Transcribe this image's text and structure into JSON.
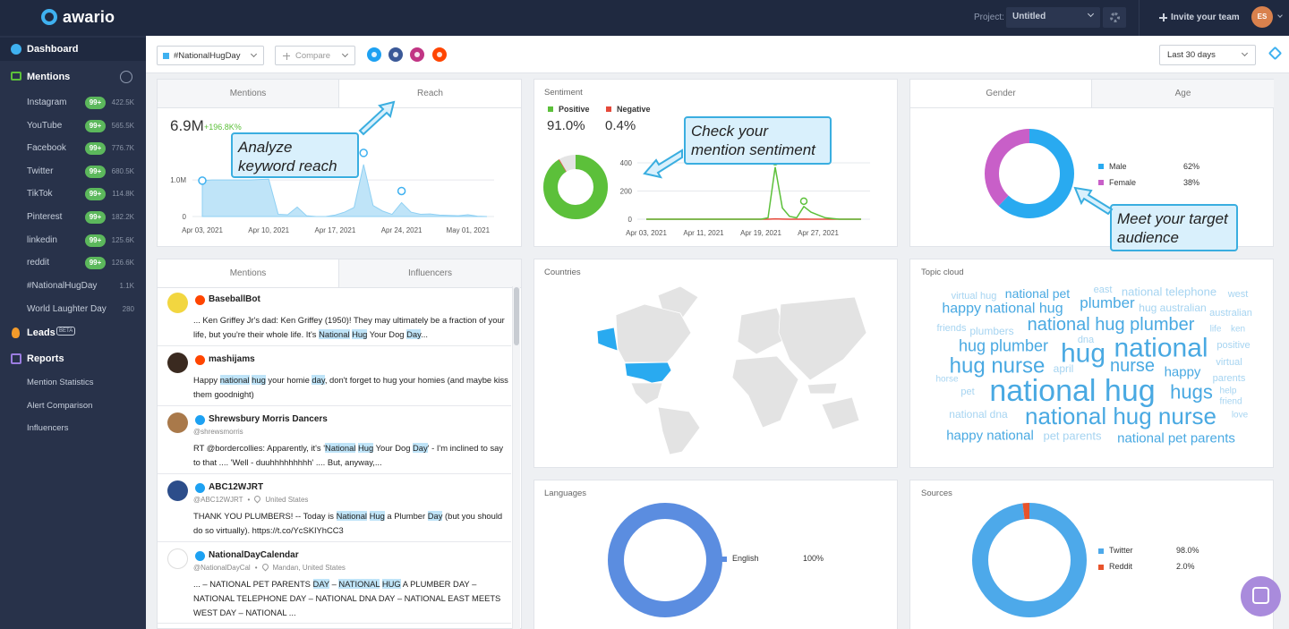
{
  "header": {
    "logo": "awario",
    "project_label": "Project:",
    "project": "Untitled",
    "invite": "Invite your team",
    "avatar": "ES"
  },
  "sidebar": {
    "dashboard": "Dashboard",
    "mentions": "Mentions",
    "sources": [
      {
        "name": "Instagram",
        "badge": "99+",
        "count": "422.5K"
      },
      {
        "name": "YouTube",
        "badge": "99+",
        "count": "565.5K"
      },
      {
        "name": "Facebook",
        "badge": "99+",
        "count": "776.7K"
      },
      {
        "name": "Twitter",
        "badge": "99+",
        "count": "680.5K"
      },
      {
        "name": "TikTok",
        "badge": "99+",
        "count": "114.8K"
      },
      {
        "name": "Pinterest",
        "badge": "99+",
        "count": "182.2K"
      },
      {
        "name": "linkedin",
        "badge": "99+",
        "count": "125.6K"
      },
      {
        "name": "reddit",
        "badge": "99+",
        "count": "126.6K"
      }
    ],
    "alerts": [
      {
        "name": "#NationalHugDay",
        "count": "1.1K"
      },
      {
        "name": "World Laughter Day",
        "count": "280"
      }
    ],
    "leads": "Leads",
    "leads_badge": "BETA",
    "reports": "Reports",
    "report_items": [
      "Mention Statistics",
      "Alert Comparison",
      "Influencers"
    ]
  },
  "toolbar": {
    "alert": "#NationalHugDay",
    "compare": "Compare",
    "period": "Last 30 days"
  },
  "reach": {
    "tabs": [
      "Mentions",
      "Reach"
    ],
    "total": "6.9M",
    "change": "+196.8K%",
    "callout": "Analyze keyword reach",
    "chart_data": {
      "type": "area",
      "color": "#8fd0f3",
      "categories": [
        "Apr 03, 2021",
        null,
        null,
        null,
        null,
        null,
        null,
        "Apr 10, 2021",
        null,
        null,
        null,
        null,
        null,
        null,
        "Apr 17, 2021",
        null,
        null,
        null,
        null,
        null,
        null,
        "Apr 24, 2021",
        null,
        null,
        null,
        null,
        null,
        null,
        "May 01, 2021",
        null,
        null
      ],
      "values": [
        980000,
        1000000,
        1000000,
        1000000,
        1000000,
        1000000,
        1010000,
        1020000,
        60000,
        50000,
        260000,
        20000,
        0,
        0,
        40000,
        120000,
        250000,
        1420000,
        300000,
        150000,
        60000,
        380000,
        120000,
        60000,
        70000,
        40000,
        30000,
        20000,
        50000,
        10000,
        0
      ],
      "ylim": [
        0,
        2200000
      ],
      "yticks": [
        0,
        {
          "value": 1000000,
          "label": "1.0M"
        }
      ],
      "grid": true
    }
  },
  "sentiment": {
    "title": "Sentiment",
    "callout": "Check your mention sentiment",
    "chart_data": [
      {
        "type": "pie",
        "categories": [
          "Positive",
          "Negative"
        ],
        "values": [
          91.0,
          0.4
        ],
        "value_labels": [
          "91.0%",
          "0.4%"
        ],
        "colors": [
          "#5cc03a",
          "#e5493a"
        ]
      },
      {
        "type": "line",
        "categories": [
          "Apr 03, 2021",
          null,
          null,
          null,
          null,
          null,
          null,
          null,
          "Apr 11, 2021",
          null,
          null,
          null,
          null,
          null,
          null,
          null,
          "Apr 19, 2021",
          null,
          null,
          null,
          null,
          null,
          null,
          null,
          "Apr 27, 2021",
          null,
          null,
          null,
          null,
          null,
          null
        ],
        "series": [
          {
            "color": "#5cc03a",
            "values": [
              0,
              0,
              0,
              0,
              0,
              0,
              0,
              0,
              0,
              0,
              0,
              0,
              0,
              0,
              0,
              0,
              0,
              10,
              370,
              80,
              20,
              10,
              90,
              50,
              30,
              10,
              5,
              0,
              0,
              0,
              0
            ]
          },
          {
            "color": "#e5493a",
            "values": [
              0,
              0,
              0,
              0,
              0,
              0,
              0,
              0,
              0,
              0,
              0,
              0,
              0,
              0,
              0,
              0,
              0,
              0,
              2,
              1,
              0,
              0,
              1,
              0,
              0,
              0,
              0,
              0,
              0,
              0,
              0
            ]
          }
        ],
        "ylim": [
          0,
          400
        ],
        "yticks": [
          0,
          200,
          400
        ],
        "grid": true
      }
    ]
  },
  "gender": {
    "tabs": [
      "Gender",
      "Age"
    ],
    "callout": "Meet your target audience",
    "chart_data": {
      "type": "pie",
      "categories": [
        "Male",
        "Female"
      ],
      "values": [
        62,
        38
      ],
      "value_labels": [
        "62%",
        "38%"
      ],
      "colors": [
        "#29aaf0",
        "#c85fc8"
      ]
    }
  },
  "mentions_feed": {
    "tabs": [
      "Mentions",
      "Influencers"
    ],
    "items": [
      {
        "name": "BaseballBot",
        "text": [
          "... Ken Griffey Jr's dad: Ken Griffey (1950)! They may ultimately be a fraction of your life, but you're their whole life. It's ",
          {
            "text": "National",
            "highlight": true
          },
          " ",
          {
            "text": "Hug",
            "highlight": true
          },
          " Your Dog ",
          {
            "text": "Day",
            "highlight": true
          },
          "..."
        ]
      },
      {
        "name": "mashijams",
        "text": [
          "Happy ",
          {
            "text": "national",
            "highlight": true
          },
          " ",
          {
            "text": "hug",
            "highlight": true
          },
          " your homie ",
          {
            "text": "day",
            "highlight": true
          },
          ", don't forget to hug your homies (and maybe kiss them goodnight)"
        ]
      },
      {
        "name": "Shrewsbury Morris Dancers",
        "handle": "@shrewsmorris",
        "text": [
          "RT @bordercollies: Apparently, it's '",
          {
            "text": "National",
            "highlight": true
          },
          " ",
          {
            "text": "Hug",
            "highlight": true
          },
          " Your Dog ",
          {
            "text": "Day",
            "highlight": true
          },
          "' - I'm inclined to say to that .... 'Well - duuhhhhhhhhh' .... But, anyway,..."
        ]
      },
      {
        "name": "ABC12WJRT",
        "handle": "@ABC12WJRT",
        "location": "United States",
        "text": [
          "THANK YOU PLUMBERS! -- Today is ",
          {
            "text": "National",
            "highlight": true
          },
          " ",
          {
            "text": "Hug",
            "highlight": true
          },
          " a Plumber ",
          {
            "text": "Day",
            "highlight": true
          },
          " (but you should do so virtually). https://t.co/YcSKIYhCC3"
        ]
      },
      {
        "name": "NationalDayCalendar",
        "handle": "@NationalDayCal",
        "location": "Mandan, United States",
        "text": [
          "... – NATIONAL PET PARENTS ",
          {
            "text": "DAY",
            "highlight": true
          },
          " – ",
          {
            "text": "NATIONAL",
            "highlight": true
          },
          " ",
          {
            "text": "HUG",
            "highlight": true
          },
          " A PLUMBER DAY – NATIONAL TELEPHONE DAY – NATIONAL DNA DAY – NATIONAL EAST MEETS WEST DAY – NATIONAL ..."
        ]
      }
    ]
  },
  "countries": {
    "title": "Countries"
  },
  "topic_cloud": {
    "title": "Topic cloud",
    "words": [
      "virtual hug",
      "national pet",
      "east",
      "national telephone",
      "west",
      "happy national hug",
      "plumber",
      "hug australian",
      "national hug plumber",
      "australian",
      "friends",
      "plumbers",
      "life",
      "ken",
      "dna",
      "hug plumber",
      "hug",
      "national",
      "positive",
      "hug nurse",
      "april",
      "nurse",
      "virtual",
      "happy",
      "horse",
      "parents",
      "pet",
      "national hug",
      "hugs",
      "help",
      "friend",
      "national dna",
      "national hug nurse",
      "love",
      "happy national",
      "pet parents",
      "national pet parents"
    ]
  },
  "languages": {
    "title": "Languages",
    "chart_data": {
      "type": "pie",
      "categories": [
        "English"
      ],
      "values": [
        100
      ],
      "value_labels": [
        "100%"
      ],
      "colors": [
        "#5b8de0"
      ]
    }
  },
  "sources": {
    "title": "Sources",
    "chart_data": {
      "type": "pie",
      "categories": [
        "Twitter",
        "Reddit"
      ],
      "values": [
        98.0,
        2.0
      ],
      "value_labels": [
        "98.0%",
        "2.0%"
      ],
      "colors": [
        "#4da9ea",
        "#e8532b"
      ]
    }
  }
}
